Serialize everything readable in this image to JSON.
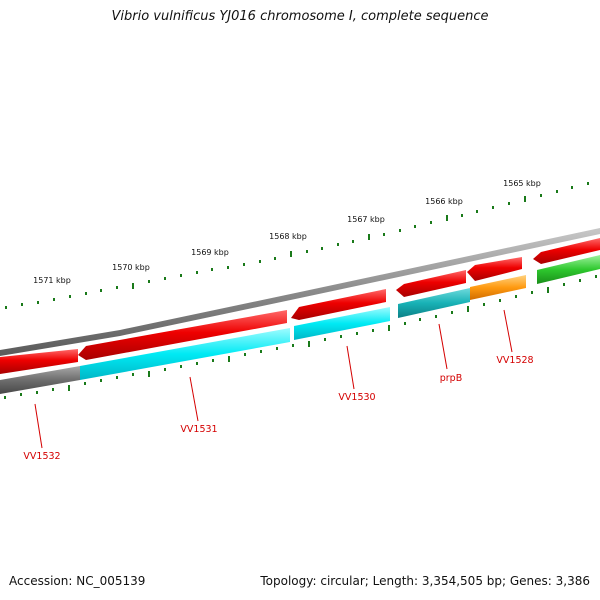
{
  "title": "Vibrio vulnificus YJ016 chromosome I, complete sequence",
  "footer": {
    "accession": "Accession: NC_005139",
    "topology": "Topology: circular; Length: 3,354,505 bp; Genes: 3,386"
  },
  "colors": {
    "backbone": "#8a8a8a",
    "gene_forward": "#e80000",
    "gene_reverse_cyan": "#00e6f0",
    "gene_reverse_teal": "#19b4b8",
    "gene_orange": "#ff9a10",
    "gene_green": "#2ec82e",
    "gene_gray": "#6e6e6e",
    "tick": "#1a7a1a",
    "label": "#d40000"
  },
  "kbp_labels": [
    "1571 kbp",
    "1570 kbp",
    "1569 kbp",
    "1568 kbp",
    "1567 kbp",
    "1566 kbp",
    "1565 kbp"
  ],
  "gene_labels": [
    "VV1532",
    "VV1531",
    "VV1530",
    "prpB",
    "VV1528"
  ]
}
